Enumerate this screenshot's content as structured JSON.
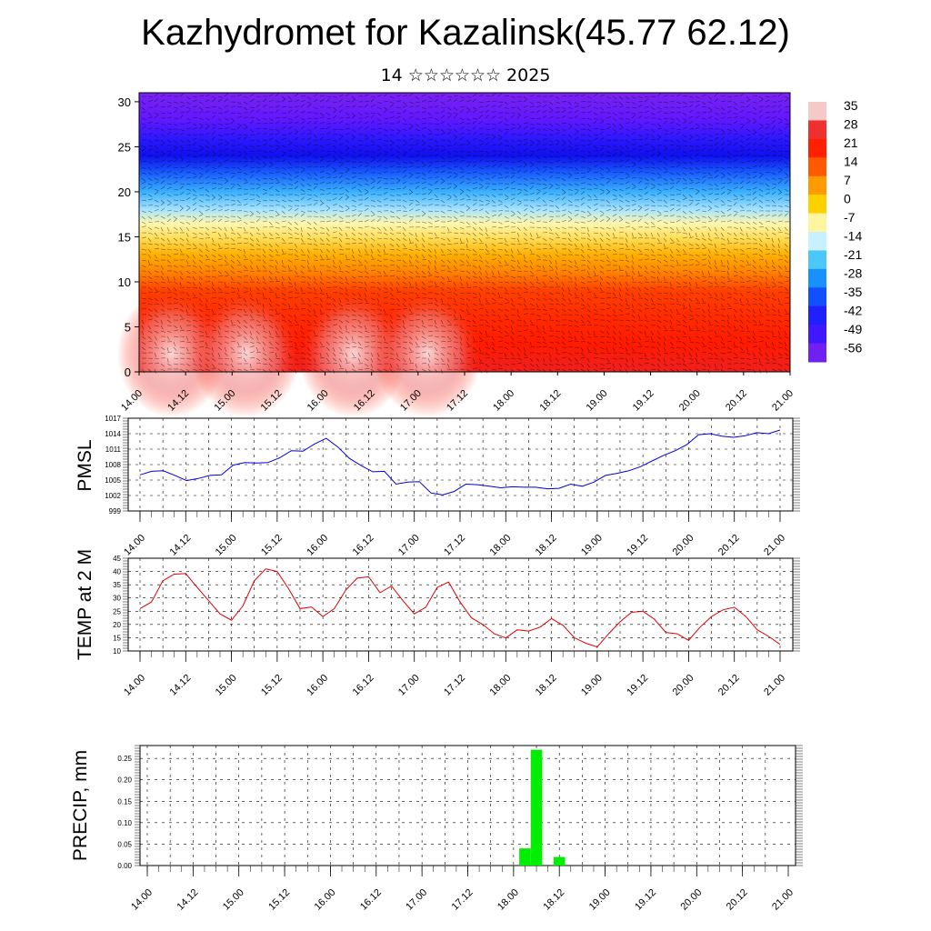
{
  "header": {
    "title": "Kazhydromet for Kazalinsk(45.77 62.12)",
    "subtitle": "14 ☆☆☆☆☆☆ 2025"
  },
  "colors": {
    "pmsl_line": "#0000dd",
    "temp_line": "#dd0000",
    "precip_bar": "#00ee00",
    "grid": "#000000"
  },
  "chart_data": [
    {
      "type": "heatmap",
      "name": "cross-section",
      "title": "",
      "xlabel": "",
      "ylabel": "",
      "x_ticks": [
        "14.00",
        "14.12",
        "15.00",
        "15.12",
        "16.00",
        "16.12",
        "17.00",
        "17.12",
        "18.00",
        "18.12",
        "19.00",
        "19.12",
        "20.00",
        "20.12",
        "21.00"
      ],
      "y_ticks": [
        0,
        5,
        10,
        15,
        20,
        25,
        30
      ],
      "ylim": [
        0,
        31
      ],
      "colorbar": {
        "labels": [
          "35",
          "28",
          "21",
          "14",
          "7",
          "0",
          "-7",
          "-14",
          "-21",
          "-28",
          "-35",
          "-42",
          "-49",
          "-56"
        ],
        "colors": [
          "#f7c8c8",
          "#ee3030",
          "#ff2000",
          "#ff5a00",
          "#ff9a00",
          "#ffd000",
          "#fff5a0",
          "#c8f0ff",
          "#4cc8f8",
          "#1890ff",
          "#1050ff",
          "#2020ff",
          "#4018ff",
          "#7020f0"
        ]
      },
      "layers": [
        {
          "height": 0,
          "color": "#ee2020"
        },
        {
          "height": 3,
          "color": "#ff1a00"
        },
        {
          "height": 6,
          "color": "#ff2a00"
        },
        {
          "height": 9,
          "color": "#ff4000"
        },
        {
          "height": 11,
          "color": "#ff8000"
        },
        {
          "height": 13,
          "color": "#ffb000"
        },
        {
          "height": 15,
          "color": "#ffe060"
        },
        {
          "height": 16.5,
          "color": "#fff6b0"
        },
        {
          "height": 18,
          "color": "#a8e4ff"
        },
        {
          "height": 20,
          "color": "#3ab0ff"
        },
        {
          "height": 22,
          "color": "#1a60ff"
        },
        {
          "height": 24,
          "color": "#1010ee"
        },
        {
          "height": 26,
          "color": "#3018ff"
        },
        {
          "height": 28,
          "color": "#6018ff"
        },
        {
          "height": 31,
          "color": "#7a22f0"
        }
      ],
      "warm_blobs": [
        {
          "x": 0.35,
          "label": "14.12"
        },
        {
          "x": 1.15,
          "label": "15.12"
        },
        {
          "x": 2.3,
          "label": "16.12"
        },
        {
          "x": 3.1,
          "label": "17.00"
        }
      ]
    },
    {
      "type": "line",
      "name": "pmsl",
      "title": "",
      "xlabel": "",
      "ylabel": "PMSL",
      "ylim": [
        999,
        1017
      ],
      "y_ticks": [
        1017,
        1014,
        1011,
        1008,
        1005,
        1002,
        999
      ],
      "x_ticks": [
        "14.00",
        "14.12",
        "15.00",
        "15.12",
        "16.00",
        "16.12",
        "17.00",
        "17.12",
        "18.00",
        "18.12",
        "19.00",
        "19.12",
        "20.00",
        "20.12",
        "21.00"
      ],
      "series": [
        {
          "values": [
            1006.0,
            1006.7,
            1006.8,
            1005.9,
            1004.9,
            1005.3,
            1005.9,
            1006.0,
            1007.9,
            1008.4,
            1008.3,
            1008.4,
            1009.3,
            1010.7,
            1010.6,
            1012.0,
            1013.1,
            1011.4,
            1009.2,
            1007.8,
            1006.6,
            1006.7,
            1004.2,
            1004.6,
            1004.7,
            1002.5,
            1002.1,
            1002.8,
            1004.2,
            1004.1,
            1003.8,
            1003.5,
            1003.7,
            1003.6,
            1003.6,
            1003.3,
            1003.4,
            1004.2,
            1003.8,
            1004.6,
            1005.9,
            1006.3,
            1006.8,
            1007.6,
            1008.7,
            1009.8,
            1010.7,
            1011.9,
            1013.8,
            1014.0,
            1013.5,
            1013.3,
            1013.6,
            1014.2,
            1014.0,
            1014.7
          ]
        }
      ]
    },
    {
      "type": "line",
      "name": "temp",
      "title": "",
      "xlabel": "",
      "ylabel": "TEMP at 2 M",
      "ylim": [
        10,
        45
      ],
      "y_ticks": [
        45,
        40,
        35,
        30,
        25,
        20,
        15,
        10
      ],
      "x_ticks": [
        "14.00",
        "14.12",
        "15.00",
        "15.12",
        "16.00",
        "16.12",
        "17.00",
        "17.12",
        "18.00",
        "18.12",
        "19.00",
        "19.12",
        "20.00",
        "20.12",
        "21.00"
      ],
      "series": [
        {
          "values": [
            26.0,
            28.5,
            36.5,
            39.0,
            39.2,
            34.0,
            29.0,
            24.0,
            21.6,
            27.0,
            36.5,
            41.0,
            40.0,
            33.5,
            26.0,
            26.6,
            23.0,
            26.0,
            33.0,
            37.5,
            38.0,
            32.0,
            34.5,
            29.0,
            24.0,
            26.5,
            34.0,
            36.0,
            28.5,
            22.5,
            20.0,
            16.5,
            14.9,
            18.0,
            17.5,
            19.0,
            22.2,
            19.7,
            15.0,
            12.9,
            11.5,
            16.5,
            21.0,
            24.6,
            25.0,
            22.0,
            17.0,
            16.5,
            14.0,
            19.0,
            23.0,
            25.5,
            26.5,
            23.0,
            18.0,
            15.5,
            12.5
          ]
        }
      ]
    },
    {
      "type": "bar",
      "name": "precip",
      "title": "",
      "xlabel": "",
      "ylabel": "PRECIP, mm",
      "ylim": [
        0,
        0.28
      ],
      "y_ticks": [
        "0.25",
        "0.20",
        "0.15",
        "0.10",
        "0.05",
        "0.00"
      ],
      "x_ticks": [
        "14.00",
        "14.12",
        "15.00",
        "15.12",
        "16.00",
        "16.12",
        "17.00",
        "17.12",
        "18.00",
        "18.12",
        "19.00",
        "19.12",
        "20.00",
        "20.12",
        "21.00"
      ],
      "bars": [
        {
          "time": "18.03",
          "value": 0.04
        },
        {
          "time": "18.06",
          "value": 0.27
        },
        {
          "time": "18.12",
          "value": 0.02
        }
      ]
    }
  ]
}
